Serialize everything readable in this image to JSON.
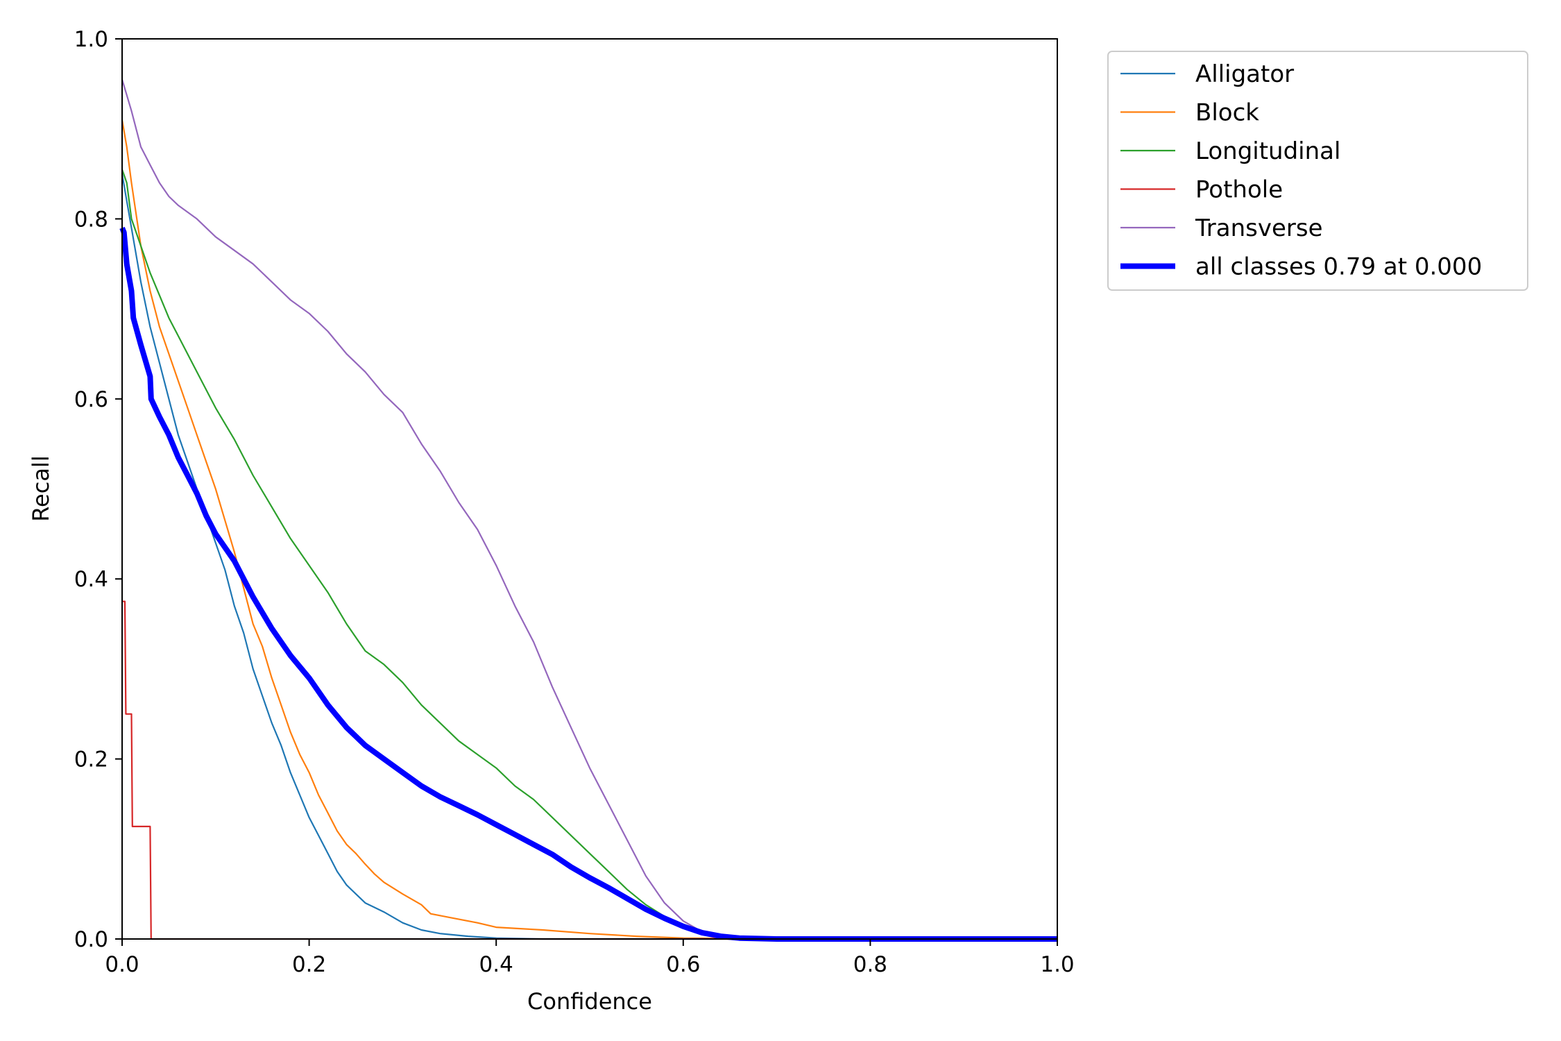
{
  "chart_data": {
    "type": "line",
    "title": "",
    "xlabel": "Confidence",
    "ylabel": "Recall",
    "xlim": [
      0.0,
      1.0
    ],
    "ylim": [
      0.0,
      1.0
    ],
    "xticks": [
      "0.0",
      "0.2",
      "0.4",
      "0.6",
      "0.8",
      "1.0"
    ],
    "yticks": [
      "0.0",
      "0.2",
      "0.4",
      "0.6",
      "0.8",
      "1.0"
    ],
    "grid": false,
    "legend_position": "outside-upper-right",
    "series": [
      {
        "name": "Alligator",
        "color": "#1f77b4",
        "x": [
          0.0,
          0.005,
          0.01,
          0.02,
          0.03,
          0.04,
          0.05,
          0.06,
          0.07,
          0.08,
          0.09,
          0.1,
          0.11,
          0.12,
          0.13,
          0.14,
          0.15,
          0.16,
          0.17,
          0.18,
          0.19,
          0.2,
          0.21,
          0.22,
          0.23,
          0.24,
          0.25,
          0.26,
          0.27,
          0.28,
          0.3,
          0.32,
          0.34,
          0.37,
          0.4,
          0.45,
          0.5,
          0.6,
          0.7,
          1.0
        ],
        "y": [
          0.85,
          0.82,
          0.79,
          0.73,
          0.68,
          0.64,
          0.6,
          0.56,
          0.53,
          0.5,
          0.47,
          0.44,
          0.41,
          0.37,
          0.34,
          0.3,
          0.27,
          0.24,
          0.215,
          0.185,
          0.16,
          0.135,
          0.115,
          0.095,
          0.075,
          0.06,
          0.05,
          0.04,
          0.035,
          0.03,
          0.018,
          0.01,
          0.006,
          0.003,
          0.001,
          0.0,
          0.0,
          0.0,
          0.0,
          0.0
        ]
      },
      {
        "name": "Block",
        "color": "#ff7f0e",
        "x": [
          0.0,
          0.005,
          0.01,
          0.02,
          0.03,
          0.04,
          0.05,
          0.06,
          0.07,
          0.08,
          0.09,
          0.1,
          0.11,
          0.12,
          0.13,
          0.14,
          0.15,
          0.16,
          0.17,
          0.18,
          0.19,
          0.2,
          0.21,
          0.22,
          0.23,
          0.24,
          0.25,
          0.26,
          0.27,
          0.28,
          0.3,
          0.32,
          0.33,
          0.35,
          0.38,
          0.4,
          0.45,
          0.5,
          0.55,
          0.6,
          0.7,
          1.0
        ],
        "y": [
          0.91,
          0.88,
          0.84,
          0.77,
          0.72,
          0.68,
          0.65,
          0.62,
          0.59,
          0.56,
          0.53,
          0.5,
          0.465,
          0.43,
          0.39,
          0.35,
          0.325,
          0.29,
          0.26,
          0.23,
          0.205,
          0.185,
          0.16,
          0.14,
          0.12,
          0.105,
          0.095,
          0.083,
          0.072,
          0.063,
          0.05,
          0.038,
          0.028,
          0.024,
          0.018,
          0.013,
          0.01,
          0.006,
          0.003,
          0.001,
          0.0,
          0.0
        ]
      },
      {
        "name": "Longitudinal",
        "color": "#2ca02c",
        "x": [
          0.0,
          0.005,
          0.01,
          0.02,
          0.03,
          0.04,
          0.05,
          0.06,
          0.08,
          0.1,
          0.12,
          0.14,
          0.16,
          0.18,
          0.2,
          0.22,
          0.24,
          0.26,
          0.28,
          0.3,
          0.32,
          0.34,
          0.36,
          0.38,
          0.4,
          0.42,
          0.44,
          0.46,
          0.48,
          0.5,
          0.52,
          0.54,
          0.56,
          0.58,
          0.6,
          0.62,
          0.64,
          0.66,
          0.7,
          1.0
        ],
        "y": [
          0.855,
          0.84,
          0.8,
          0.77,
          0.74,
          0.715,
          0.69,
          0.67,
          0.63,
          0.59,
          0.555,
          0.515,
          0.48,
          0.445,
          0.415,
          0.385,
          0.35,
          0.32,
          0.305,
          0.285,
          0.26,
          0.24,
          0.22,
          0.205,
          0.19,
          0.17,
          0.155,
          0.135,
          0.115,
          0.095,
          0.075,
          0.055,
          0.038,
          0.025,
          0.015,
          0.007,
          0.003,
          0.001,
          0.0,
          0.0
        ]
      },
      {
        "name": "Pothole",
        "color": "#d62728",
        "x": [
          0.0,
          0.002,
          0.003,
          0.004,
          0.01,
          0.011,
          0.03,
          0.031,
          1.0
        ],
        "y": [
          0.375,
          0.375,
          0.375,
          0.25,
          0.25,
          0.125,
          0.125,
          0.0,
          0.0
        ]
      },
      {
        "name": "Transverse",
        "color": "#9467bd",
        "x": [
          0.0,
          0.01,
          0.02,
          0.03,
          0.04,
          0.05,
          0.06,
          0.08,
          0.1,
          0.12,
          0.14,
          0.16,
          0.18,
          0.2,
          0.22,
          0.24,
          0.26,
          0.28,
          0.3,
          0.32,
          0.34,
          0.36,
          0.38,
          0.4,
          0.42,
          0.44,
          0.46,
          0.48,
          0.5,
          0.52,
          0.54,
          0.56,
          0.58,
          0.6,
          0.62,
          0.64,
          0.66,
          0.68,
          0.7,
          1.0
        ],
        "y": [
          0.955,
          0.92,
          0.88,
          0.86,
          0.84,
          0.825,
          0.815,
          0.8,
          0.78,
          0.765,
          0.75,
          0.73,
          0.71,
          0.695,
          0.675,
          0.65,
          0.63,
          0.605,
          0.585,
          0.55,
          0.52,
          0.485,
          0.455,
          0.415,
          0.37,
          0.33,
          0.28,
          0.235,
          0.19,
          0.15,
          0.11,
          0.07,
          0.04,
          0.02,
          0.008,
          0.003,
          0.001,
          0.0,
          0.0,
          0.0
        ]
      },
      {
        "name": "all classes 0.79 at 0.000",
        "color": "#0000ff",
        "emphasis": true,
        "x": [
          0.0,
          0.002,
          0.005,
          0.01,
          0.012,
          0.02,
          0.03,
          0.031,
          0.04,
          0.05,
          0.06,
          0.07,
          0.08,
          0.09,
          0.1,
          0.12,
          0.14,
          0.16,
          0.18,
          0.2,
          0.22,
          0.24,
          0.26,
          0.28,
          0.3,
          0.32,
          0.34,
          0.36,
          0.38,
          0.4,
          0.42,
          0.44,
          0.46,
          0.48,
          0.5,
          0.52,
          0.54,
          0.56,
          0.58,
          0.6,
          0.62,
          0.64,
          0.66,
          0.7,
          1.0
        ],
        "y": [
          0.79,
          0.785,
          0.75,
          0.72,
          0.69,
          0.66,
          0.625,
          0.6,
          0.58,
          0.56,
          0.535,
          0.515,
          0.495,
          0.47,
          0.45,
          0.42,
          0.38,
          0.345,
          0.315,
          0.29,
          0.26,
          0.235,
          0.215,
          0.2,
          0.185,
          0.17,
          0.158,
          0.148,
          0.138,
          0.127,
          0.116,
          0.105,
          0.094,
          0.08,
          0.068,
          0.057,
          0.045,
          0.033,
          0.023,
          0.014,
          0.007,
          0.003,
          0.001,
          0.0,
          0.0
        ]
      }
    ]
  }
}
